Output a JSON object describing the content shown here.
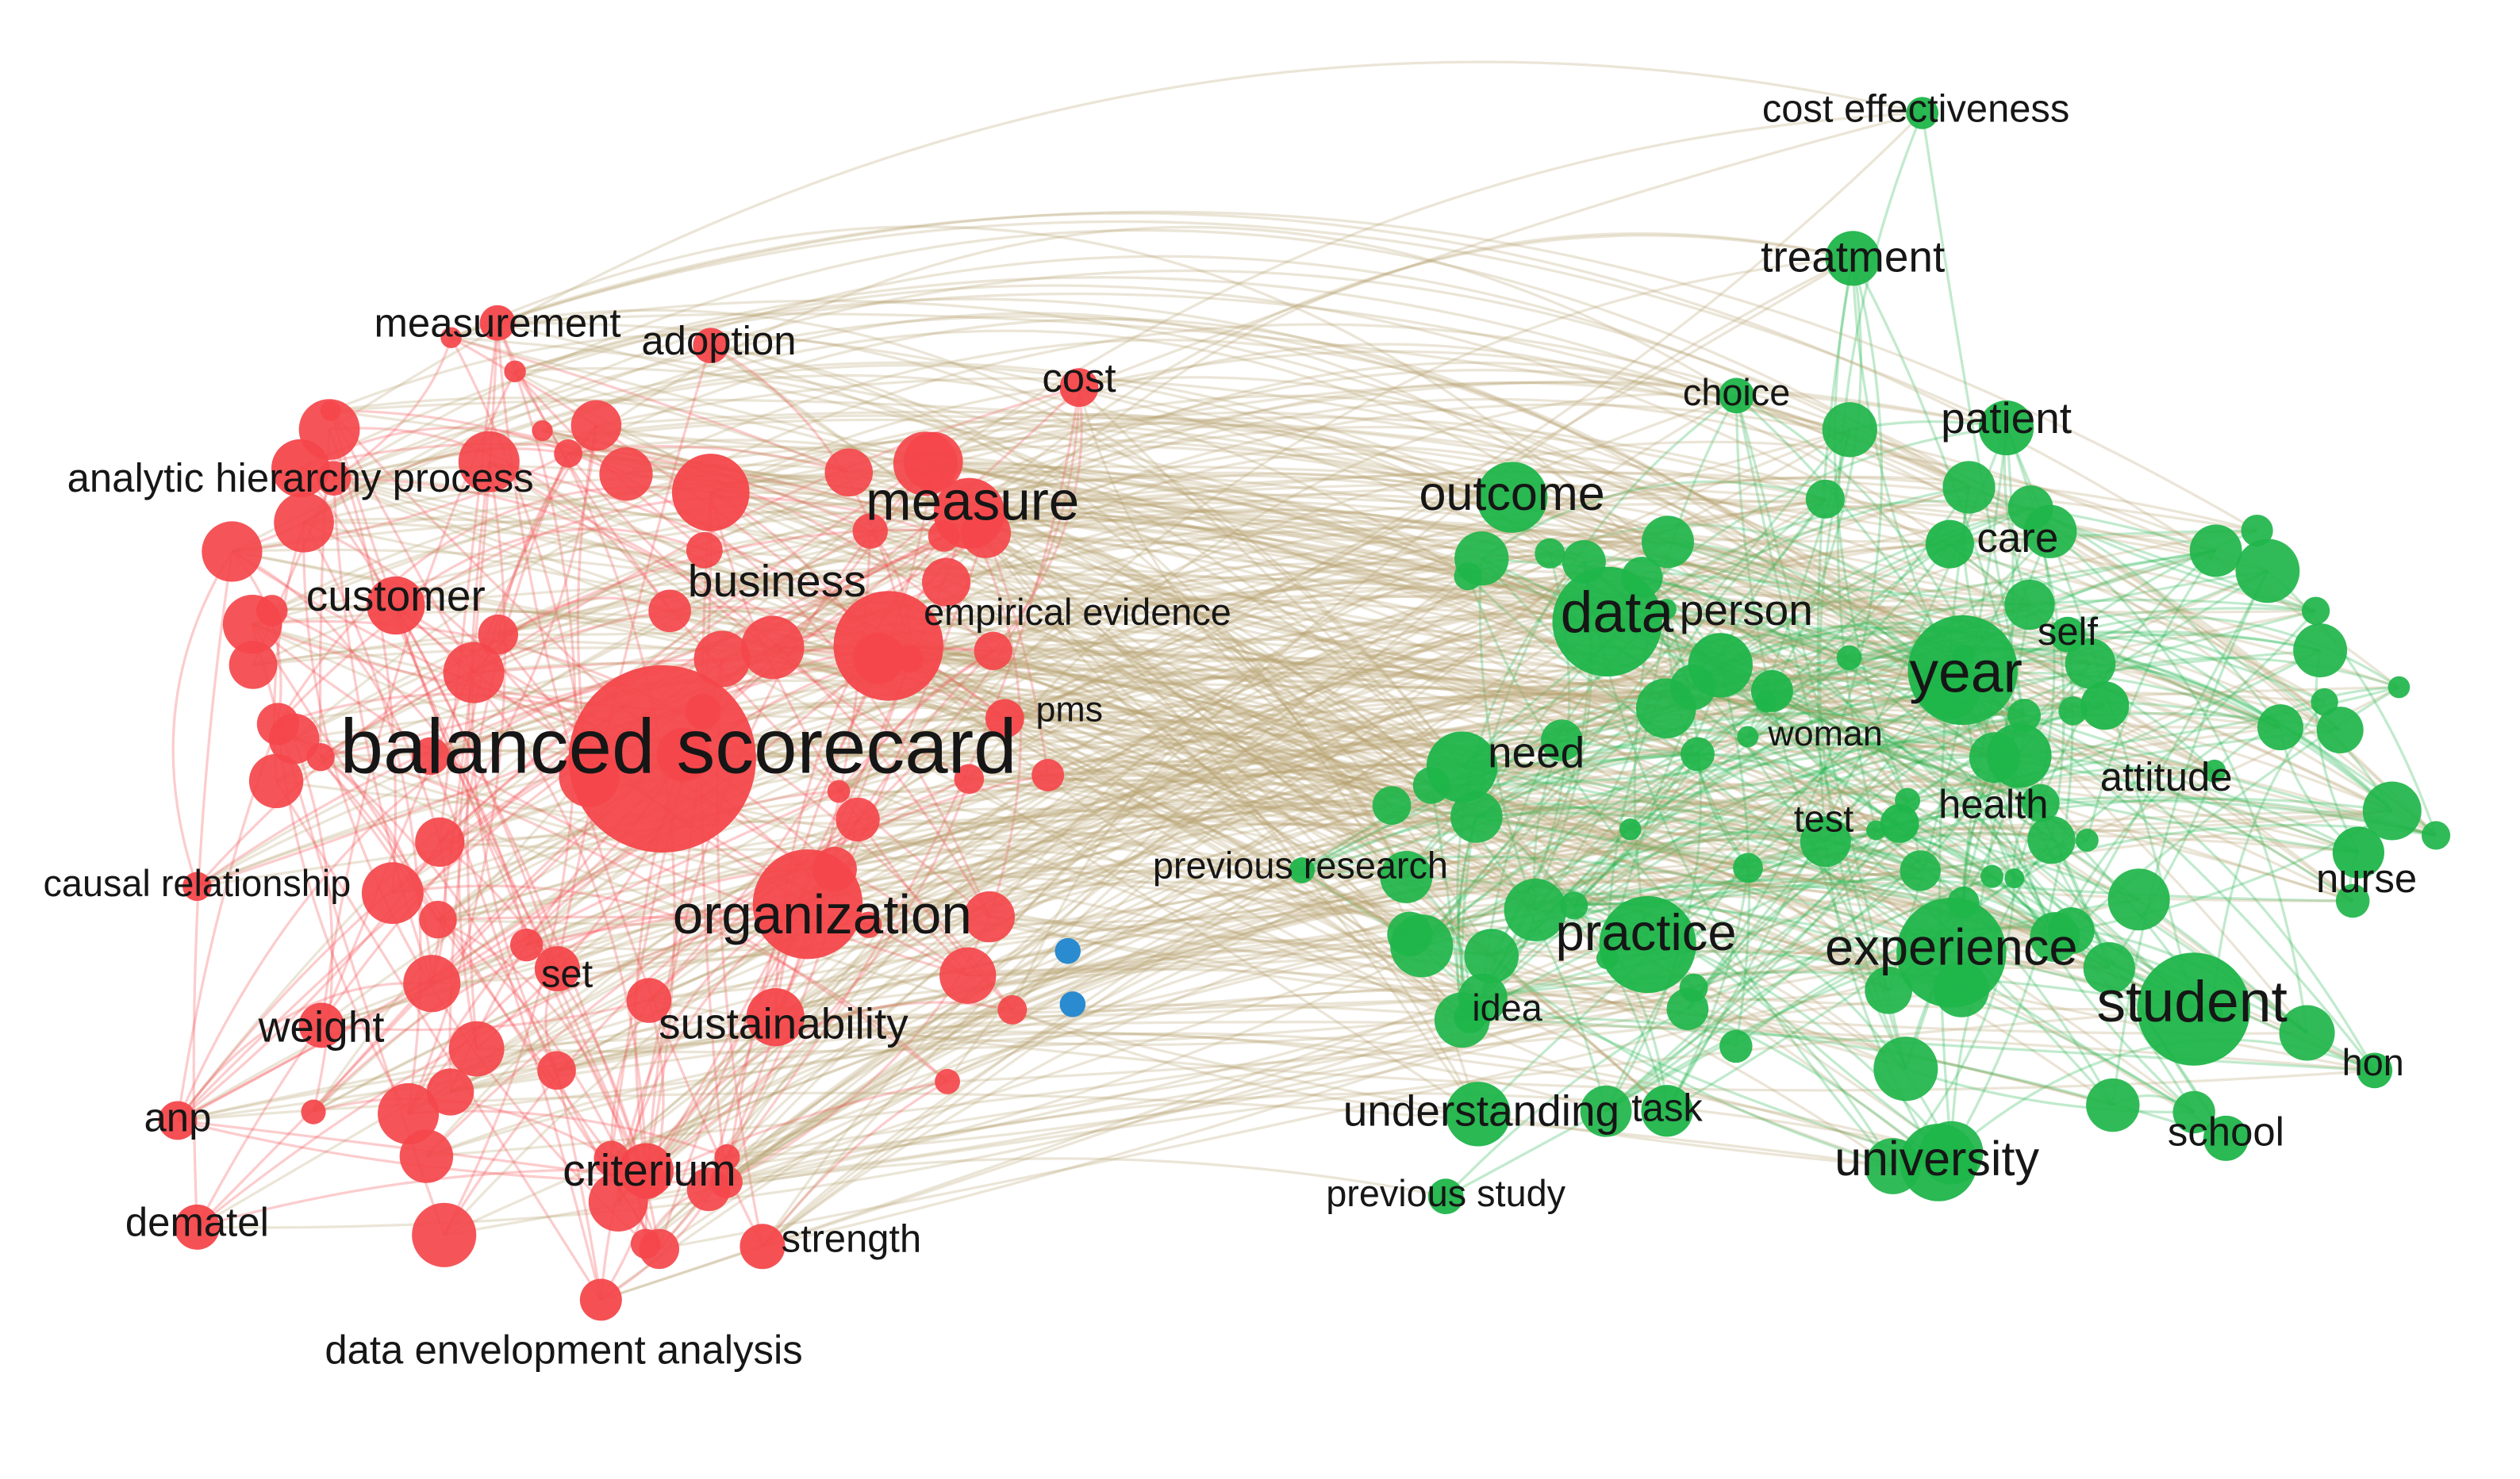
{
  "nodes": [
    {
      "label": "measurement"
    },
    {
      "label": "adoption"
    },
    {
      "label": "cost"
    },
    {
      "label": "analytic hierarchy process"
    },
    {
      "label": "measure"
    },
    {
      "label": "customer"
    },
    {
      "label": "business"
    },
    {
      "label": "empirical evidence"
    },
    {
      "label": "pms"
    },
    {
      "label": "balanced scorecard"
    },
    {
      "label": "causal relationship"
    },
    {
      "label": "organization"
    },
    {
      "label": "set"
    },
    {
      "label": "weight"
    },
    {
      "label": "sustainability"
    },
    {
      "label": "anp"
    },
    {
      "label": "criterium"
    },
    {
      "label": "dematel"
    },
    {
      "label": "strength"
    },
    {
      "label": "data envelopment analysis"
    },
    {
      "label": "cost effectiveness"
    },
    {
      "label": "treatment"
    },
    {
      "label": "choice"
    },
    {
      "label": "patient"
    },
    {
      "label": "outcome"
    },
    {
      "label": "care"
    },
    {
      "label": "data"
    },
    {
      "label": "person"
    },
    {
      "label": "self"
    },
    {
      "label": "year"
    },
    {
      "label": "woman"
    },
    {
      "label": "need"
    },
    {
      "label": "attitude"
    },
    {
      "label": "health"
    },
    {
      "label": "test"
    },
    {
      "label": "previous research"
    },
    {
      "label": "nurse"
    },
    {
      "label": "practice"
    },
    {
      "label": "experience"
    },
    {
      "label": "student"
    },
    {
      "label": "idea"
    },
    {
      "label": "hon"
    },
    {
      "label": "understanding"
    },
    {
      "label": "task"
    },
    {
      "label": "school"
    },
    {
      "label": "university"
    },
    {
      "label": "previous study"
    }
  ]
}
